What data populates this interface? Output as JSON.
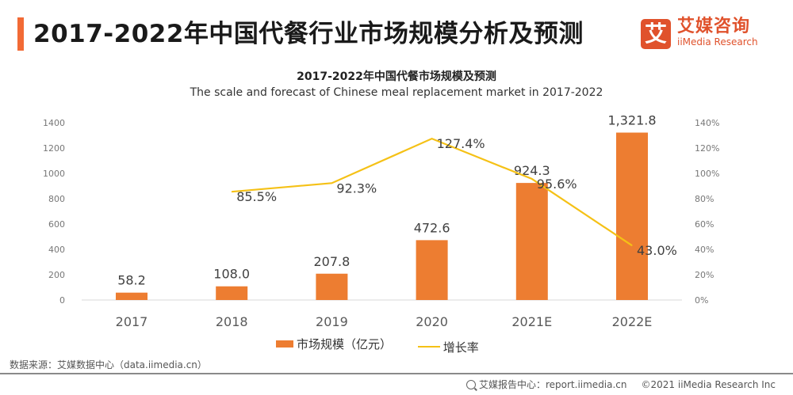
{
  "header": {
    "title": "2017-2022年中国代餐行业市场规模分析及预测",
    "accent_color": "#f26a35"
  },
  "logo": {
    "mark": "艾",
    "name_cn": "艾媒咨询",
    "name_en": "iiMedia Research",
    "color": "#e0522c"
  },
  "chart_data": {
    "type": "bar+line",
    "title": "2017-2022年中国代餐市场规模及预测",
    "subtitle": "The scale and forecast of Chinese meal replacement market in 2017-2022",
    "categories": [
      "2017",
      "2018",
      "2019",
      "2020",
      "2021E",
      "2022E"
    ],
    "series": [
      {
        "name": "市场规模（亿元）",
        "type": "bar",
        "axis": "left",
        "color": "#ed7d31",
        "values": [
          58.2,
          108.0,
          207.8,
          472.6,
          924.3,
          1321.8
        ],
        "labels": [
          "58.2",
          "108.0",
          "207.8",
          "472.6",
          "924.3",
          "1,321.8"
        ]
      },
      {
        "name": "增长率",
        "type": "line",
        "axis": "right",
        "color": "#f5c116",
        "values": [
          null,
          85.5,
          92.3,
          127.4,
          95.6,
          43.0
        ],
        "labels": [
          null,
          "85.5%",
          "92.3%",
          "127.4%",
          "95.6%",
          "43.0%"
        ]
      }
    ],
    "left_axis": {
      "min": 0,
      "max": 1400,
      "ticks": [
        "0",
        "200",
        "400",
        "600",
        "800",
        "1000",
        "1200",
        "1400"
      ]
    },
    "right_axis": {
      "min": 0,
      "max": 140,
      "ticks": [
        "0%",
        "20%",
        "40%",
        "60%",
        "80%",
        "100%",
        "120%",
        "140%"
      ]
    },
    "grid": false,
    "legend": "bottom"
  },
  "legend": {
    "bar_label": "市场规模（亿元）",
    "line_label": "增长率"
  },
  "source": "数据来源：艾媒数据中心（data.iimedia.cn）",
  "footer": {
    "report_center": "艾媒报告中心：report.iimedia.cn",
    "copyright": "©2021  iiMedia Research  Inc"
  }
}
